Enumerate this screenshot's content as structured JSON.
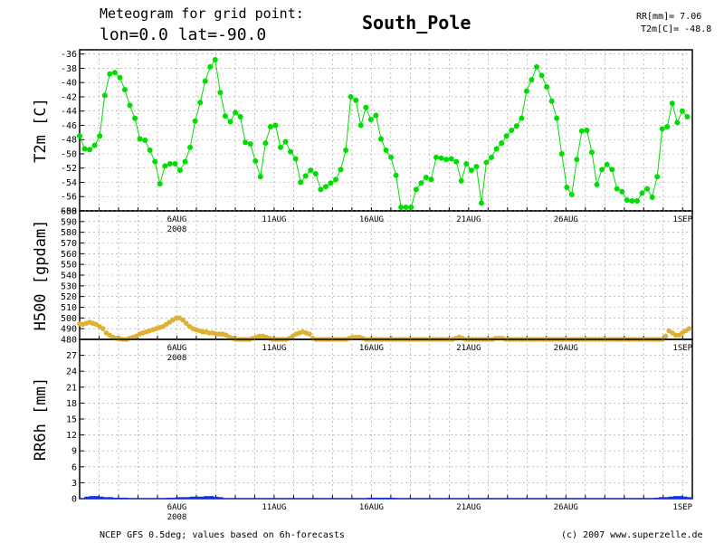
{
  "header": {
    "line1": "Meteogram for grid point:",
    "line2": "lon=0.0 lat=-90.0",
    "station": "South_Pole",
    "stats": [
      "RR[mm]= 7.06",
      "T2m[C]= -48.8"
    ]
  },
  "footer": {
    "left": "NCEP GFS 0.5deg; values based on 6h-forecasts",
    "right": "(c) 2007 www.superzelle.de"
  },
  "colors": {
    "t2m": "#00dd00",
    "h500": "#e0b030",
    "rr6h": "#1030e0"
  },
  "chart_data": [
    {
      "type": "line",
      "ylabel": "T2m [C]",
      "xlabel": "",
      "xlim": [
        0,
        31.5
      ],
      "ylim": [
        -58,
        -35.4
      ],
      "yticks": [
        -58,
        -56,
        -54,
        -52,
        -50,
        -48,
        -46,
        -44,
        -42,
        -40,
        -38,
        -36
      ],
      "x_tick_labels": [
        {
          "x": 5,
          "label": "6AUG",
          "sublabel": "2008"
        },
        {
          "x": 10,
          "label": "11AUG"
        },
        {
          "x": 15,
          "label": "16AUG"
        },
        {
          "x": 20,
          "label": "21AUG"
        },
        {
          "x": 25,
          "label": "26AUG"
        },
        {
          "x": 31,
          "label": "1SEP"
        }
      ],
      "grid": true,
      "series": [
        {
          "values": [
            -47.5,
            -49.3,
            -49.4,
            -48.8,
            -47.5,
            -41.8,
            -38.8,
            -38.6,
            -39.3,
            -41.0,
            -43.2,
            -45.0,
            -47.9,
            -48.1,
            -49.5,
            -51.1,
            -54.2,
            -51.7,
            -51.4,
            -51.4,
            -52.3,
            -51.1,
            -49.1,
            -45.4,
            -42.8,
            -39.8,
            -37.8,
            -36.8,
            -41.4,
            -44.7,
            -45.5,
            -44.2,
            -44.8,
            -48.4,
            -48.6,
            -51.0,
            -53.2,
            -48.5,
            -46.2,
            -46.0,
            -49.1,
            -48.3,
            -49.7,
            -50.7,
            -54.0,
            -53.1,
            -52.3,
            -52.8,
            -55.0,
            -54.6,
            -54.1,
            -53.6,
            -52.2,
            -49.5,
            -42.0,
            -42.5,
            -46.0,
            -43.5,
            -45.2,
            -44.6,
            -47.9,
            -49.5,
            -50.5,
            -53.0,
            -57.5,
            -57.5,
            -57.5,
            -55.0,
            -54.1,
            -53.3,
            -53.6,
            -50.5,
            -50.6,
            -50.8,
            -50.7,
            -51.1,
            -53.8,
            -51.4,
            -52.3,
            -51.8,
            -56.9,
            -51.2,
            -50.5,
            -49.3,
            -48.5,
            -47.5,
            -46.7,
            -46.1,
            -45.0,
            -41.2,
            -39.6,
            -37.8,
            -39.0,
            -40.6,
            -42.6,
            -45.0,
            -50.0,
            -54.7,
            -55.7,
            -50.8,
            -46.8,
            -46.7,
            -49.8,
            -54.3,
            -52.2,
            -51.5,
            -52.2,
            -54.9,
            -55.3,
            -56.5,
            -56.6,
            -56.6,
            -55.5,
            -54.9,
            -56.1,
            -53.2,
            -46.5,
            -46.2,
            -42.9,
            -45.6,
            -44.0,
            -44.8
          ]
        }
      ]
    },
    {
      "type": "scatter",
      "ylabel": "H500 [gpdam]",
      "xlabel": "",
      "xlim": [
        0,
        31.5
      ],
      "ylim": [
        480,
        600
      ],
      "yticks": [
        480,
        490,
        500,
        510,
        520,
        530,
        540,
        550,
        560,
        570,
        580,
        590,
        600
      ],
      "x_tick_labels": [
        {
          "x": 5,
          "label": "6AUG",
          "sublabel": "2008"
        },
        {
          "x": 10,
          "label": "11AUG"
        },
        {
          "x": 15,
          "label": "16AUG"
        },
        {
          "x": 20,
          "label": "21AUG"
        },
        {
          "x": 25,
          "label": "26AUG"
        },
        {
          "x": 31,
          "label": "1SEP"
        }
      ],
      "grid": true,
      "series": [
        {
          "values": [
            494.5,
            494,
            495,
            496,
            495,
            494,
            492,
            490,
            486,
            484,
            482,
            481,
            480.5,
            480,
            480,
            481,
            482,
            483,
            485,
            486,
            487,
            488,
            489,
            490,
            491,
            492,
            494,
            496,
            498,
            500,
            500,
            498,
            495,
            492,
            490,
            489,
            488,
            487,
            487,
            486,
            486,
            485,
            485,
            485,
            484,
            482,
            481,
            480,
            480,
            480,
            480,
            480,
            481,
            482,
            483,
            483,
            482,
            481,
            480,
            480,
            480,
            480,
            480,
            481,
            483,
            485,
            486,
            487,
            486,
            485,
            481,
            480,
            480,
            480,
            480,
            480,
            480,
            480,
            480,
            480,
            480,
            481,
            482,
            482,
            482,
            481,
            480,
            480,
            480,
            480,
            480,
            480,
            480,
            480,
            480,
            480,
            480,
            480,
            480,
            480,
            480,
            480,
            480,
            480,
            480,
            480,
            480,
            480,
            480,
            480,
            480,
            480,
            480,
            481,
            482,
            481,
            480,
            480,
            480,
            480,
            480,
            480,
            480,
            480,
            480,
            481,
            481,
            481,
            480,
            480,
            480,
            480,
            480,
            480,
            480,
            480,
            480,
            480,
            480,
            480,
            480,
            480,
            480,
            480,
            480,
            480,
            480,
            480,
            480,
            480,
            480,
            480,
            480,
            480,
            480,
            480,
            480,
            480,
            480,
            480,
            480,
            480,
            480,
            480,
            480,
            480,
            480,
            480,
            480,
            480,
            480,
            480,
            480,
            480,
            480,
            480,
            483,
            488,
            486,
            484,
            484,
            486,
            488,
            490
          ]
        }
      ]
    },
    {
      "type": "bar",
      "ylabel": "RR6h [mm]",
      "xlabel": "",
      "xlim": [
        0,
        31.5
      ],
      "ylim": [
        0,
        30
      ],
      "yticks": [
        0,
        3,
        6,
        9,
        12,
        15,
        18,
        21,
        24,
        27
      ],
      "x_tick_labels": [
        {
          "x": 5,
          "label": "6AUG",
          "sublabel": "2008"
        },
        {
          "x": 10,
          "label": "11AUG"
        },
        {
          "x": 15,
          "label": "16AUG"
        },
        {
          "x": 20,
          "label": "21AUG"
        },
        {
          "x": 25,
          "label": "26AUG"
        },
        {
          "x": 31,
          "label": "1SEP"
        }
      ],
      "grid": true,
      "series": [
        {
          "values": [
            0.0,
            0.3,
            0.4,
            0.4,
            0.3,
            0.2,
            0.2,
            0.1,
            0.1,
            0.1,
            0.0,
            0.0,
            0.0,
            0.0,
            0.0,
            0.0,
            0.0,
            0.0,
            0.1,
            0.1,
            0.2,
            0.2,
            0.2,
            0.3,
            0.3,
            0.3,
            0.4,
            0.4,
            0.3,
            0.2,
            0.0,
            0.0,
            0.0,
            0.0,
            0.0,
            0.0,
            0.0,
            0.0,
            0.0,
            0.0,
            0.0,
            0.0,
            0.0,
            0.0,
            0.0,
            0.0,
            0.0,
            0.0,
            0.0,
            0.0,
            0.0,
            0.0,
            0.0,
            0.0,
            0.0,
            0.0,
            0.0,
            0.0,
            0.0,
            0.0,
            0.1,
            0.1,
            0.1,
            0.1,
            0.1,
            0.1,
            0.0,
            0.0,
            0.0,
            0.0,
            0.0,
            0.0,
            0.0,
            0.0,
            0.0,
            0.0,
            0.0,
            0.0,
            0.0,
            0.0,
            0.0,
            0.0,
            0.0,
            0.0,
            0.0,
            0.0,
            0.0,
            0.0,
            0.0,
            0.0,
            0.0,
            0.0,
            0.0,
            0.0,
            0.0,
            0.0,
            0.0,
            0.0,
            0.0,
            0.0,
            0.0,
            0.0,
            0.0,
            0.0,
            0.0,
            0.0,
            0.0,
            0.0,
            0.0,
            0.0,
            0.0,
            0.0,
            0.0,
            0.0,
            0.0,
            0.0,
            0.0,
            0.0,
            0.0,
            0.0,
            0.1,
            0.2,
            0.2,
            0.3,
            0.4,
            0.4,
            0.3,
            0.2
          ]
        }
      ]
    }
  ]
}
